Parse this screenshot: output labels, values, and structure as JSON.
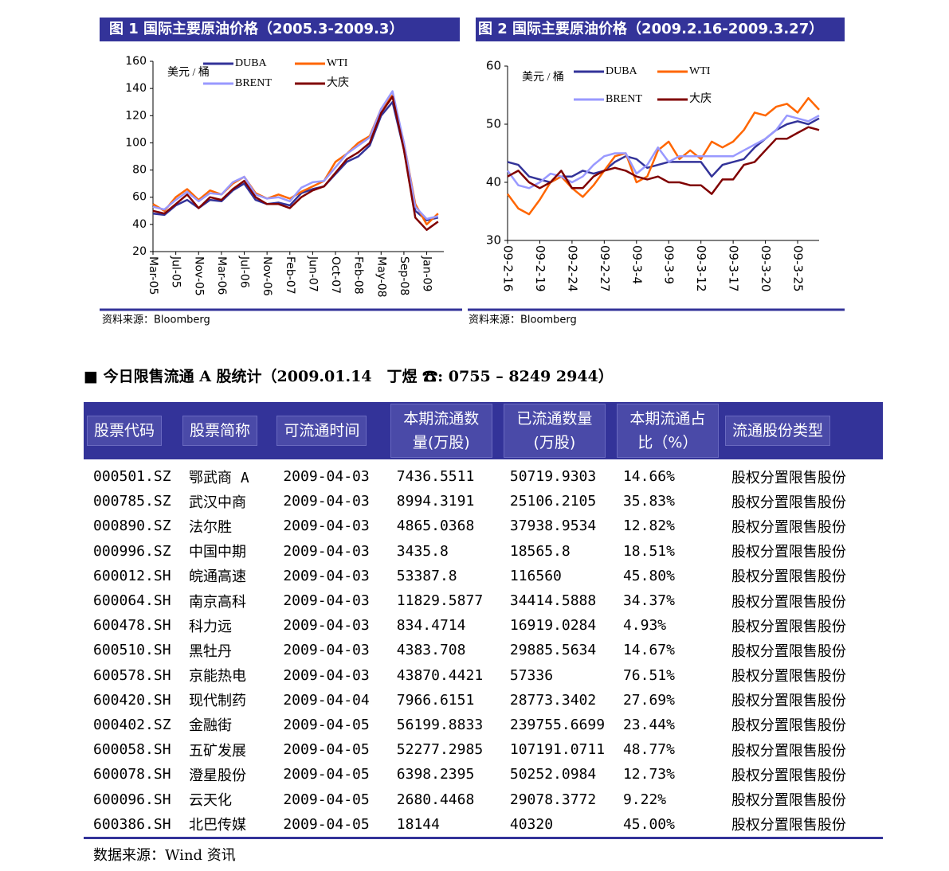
{
  "chart_data": [
    {
      "type": "line",
      "title": "图 1  国际主要原油价格（2005.3-2009.3）",
      "y_label": "美元 / 桶",
      "source": "资料来源：Bloomberg",
      "categories": [
        "Mar-05",
        null,
        "Jul-05",
        null,
        "Nov-05",
        null,
        "Mar-06",
        null,
        "Jul-06",
        null,
        "Nov-06",
        null,
        "Feb-07",
        null,
        "Jun-07",
        null,
        "Oct-07",
        null,
        "Feb-08",
        null,
        "May-08",
        null,
        "Sep-08",
        null,
        "Jan-09",
        null
      ],
      "series": [
        {
          "name": "DUBA",
          "color": "#333399",
          "values": [
            48,
            47,
            54,
            58,
            52,
            58,
            57,
            65,
            70,
            58,
            55,
            56,
            54,
            63,
            66,
            68,
            77,
            86,
            90,
            98,
            120,
            130,
            95,
            50,
            43,
            45
          ]
        },
        {
          "name": "WTI",
          "color": "#ff6600",
          "values": [
            55,
            50,
            60,
            66,
            58,
            65,
            62,
            70,
            75,
            63,
            59,
            62,
            59,
            64,
            68,
            72,
            86,
            92,
            100,
            105,
            125,
            135,
            100,
            55,
            40,
            48
          ]
        },
        {
          "name": "BRENT",
          "color": "#9999ff",
          "values": [
            53,
            51,
            58,
            64,
            57,
            63,
            62,
            71,
            75,
            62,
            59,
            60,
            57,
            67,
            71,
            72,
            82,
            92,
            98,
            104,
            125,
            138,
            100,
            53,
            44,
            46
          ]
        },
        {
          "name": "大庆",
          "color": "#800000",
          "values": [
            50,
            48,
            55,
            62,
            52,
            60,
            58,
            66,
            72,
            60,
            55,
            55,
            52,
            60,
            65,
            68,
            78,
            88,
            93,
            100,
            122,
            134,
            95,
            45,
            36,
            42
          ]
        }
      ],
      "ylim": [
        20,
        160
      ],
      "yticks": [
        20,
        40,
        60,
        80,
        100,
        120,
        140,
        160
      ]
    },
    {
      "type": "line",
      "title": "图 2  国际主要原油价格（2009.2.16-2009.3.27）",
      "y_label": "美元 / 桶",
      "source": "资料来源：Bloomberg",
      "categories": [
        "09-2-16",
        null,
        null,
        "09-2-19",
        null,
        null,
        "09-2-24",
        null,
        null,
        "09-2-27",
        null,
        null,
        "09-3-4",
        null,
        null,
        "09-3-9",
        null,
        null,
        "09-3-12",
        null,
        null,
        "09-3-17",
        null,
        null,
        "09-3-20",
        null,
        null,
        "09-3-25",
        null,
        null
      ],
      "series": [
        {
          "name": "DUBA",
          "color": "#333399",
          "values": [
            43.5,
            43,
            41,
            40.5,
            40,
            41,
            41,
            42,
            41.5,
            42,
            43.5,
            44.5,
            44,
            42.5,
            43,
            43.5,
            43.5,
            43.5,
            43.5,
            41,
            43,
            43.5,
            44,
            46,
            47.5,
            49,
            50,
            50.5,
            50,
            51
          ]
        },
        {
          "name": "WTI",
          "color": "#ff6600",
          "values": [
            38,
            35.5,
            34.5,
            37,
            40,
            41,
            39,
            37.5,
            39.5,
            42,
            44.5,
            45,
            40,
            41,
            45.5,
            47,
            44,
            45.5,
            44,
            47,
            46,
            47,
            49,
            52,
            51.5,
            53,
            53.5,
            52,
            54.5,
            52.5
          ]
        },
        {
          "name": "BRENT",
          "color": "#9999ff",
          "values": [
            42,
            39.5,
            39,
            40,
            41.5,
            41,
            40,
            41,
            43,
            44.5,
            45,
            45,
            41.5,
            43,
            46,
            43.5,
            44.5,
            44.5,
            44.5,
            44.5,
            44.5,
            44.5,
            45.5,
            46.5,
            47.5,
            49,
            51.5,
            51,
            50.5,
            51.5
          ]
        },
        {
          "name": "大庆",
          "color": "#800000",
          "values": [
            41,
            42,
            40,
            39,
            40,
            42,
            39,
            39,
            41,
            42,
            42.5,
            42,
            41,
            40.5,
            41,
            40,
            40,
            39.5,
            39.5,
            38,
            40.5,
            40.5,
            43,
            43.5,
            45.5,
            47.5,
            47.5,
            48.5,
            49.5,
            49
          ]
        }
      ],
      "ylim": [
        30,
        60
      ],
      "yticks": [
        30,
        40,
        50,
        60
      ]
    }
  ],
  "table": {
    "heading": "今日限售流通 A 股统计（2009.01.14　丁煜 ☎: 0755 – 8249 2944）",
    "columns": [
      "股票代码",
      "股票简称",
      "可流通时间",
      "本期流通数量(万股)",
      "已流通数量(万股)",
      "本期流通占比（%）",
      "流通股份类型"
    ],
    "rows": [
      [
        "000501.SZ",
        "鄂武商 A",
        "2009-04-03",
        "7436.5511",
        "50719.9303",
        "14.66%",
        "股权分置限售股份"
      ],
      [
        "000785.SZ",
        "武汉中商",
        "2009-04-03",
        "8994.3191",
        "25106.2105",
        "35.83%",
        "股权分置限售股份"
      ],
      [
        "000890.SZ",
        "法尔胜",
        "2009-04-03",
        "4865.0368",
        "37938.9534",
        "12.82%",
        "股权分置限售股份"
      ],
      [
        "000996.SZ",
        "中国中期",
        "2009-04-03",
        "3435.8",
        "18565.8",
        "18.51%",
        "股权分置限售股份"
      ],
      [
        "600012.SH",
        "皖通高速",
        "2009-04-03",
        "53387.8",
        "116560",
        "45.80%",
        "股权分置限售股份"
      ],
      [
        "600064.SH",
        "南京高科",
        "2009-04-03",
        "11829.5877",
        "34414.5888",
        "34.37%",
        "股权分置限售股份"
      ],
      [
        "600478.SH",
        "科力远",
        "2009-04-03",
        "834.4714",
        "16919.0284",
        "4.93%",
        "股权分置限售股份"
      ],
      [
        "600510.SH",
        "黑牡丹",
        "2009-04-03",
        "4383.708",
        "29885.5634",
        "14.67%",
        "股权分置限售股份"
      ],
      [
        "600578.SH",
        "京能热电",
        "2009-04-03",
        "43870.4421",
        "57336",
        "76.51%",
        "股权分置限售股份"
      ],
      [
        "600420.SH",
        "现代制药",
        "2009-04-04",
        "7966.6151",
        "28773.3402",
        "27.69%",
        "股权分置限售股份"
      ],
      [
        "000402.SZ",
        "金融街",
        "2009-04-05",
        "56199.8833",
        "239755.6699",
        "23.44%",
        "股权分置限售股份"
      ],
      [
        "600058.SH",
        "五矿发展",
        "2009-04-05",
        "52277.2985",
        "107191.0711",
        "48.77%",
        "股权分置限售股份"
      ],
      [
        "600078.SH",
        "澄星股份",
        "2009-04-05",
        "6398.2395",
        "50252.0984",
        "12.73%",
        "股权分置限售股份"
      ],
      [
        "600096.SH",
        "云天化",
        "2009-04-05",
        "2680.4468",
        "29078.3772",
        "9.22%",
        "股权分置限售股份"
      ],
      [
        "600386.SH",
        "北巴传媒",
        "2009-04-05",
        "18144",
        "40320",
        "45.00%",
        "股权分置限售股份"
      ]
    ],
    "source": "数据来源：Wind 资讯"
  }
}
